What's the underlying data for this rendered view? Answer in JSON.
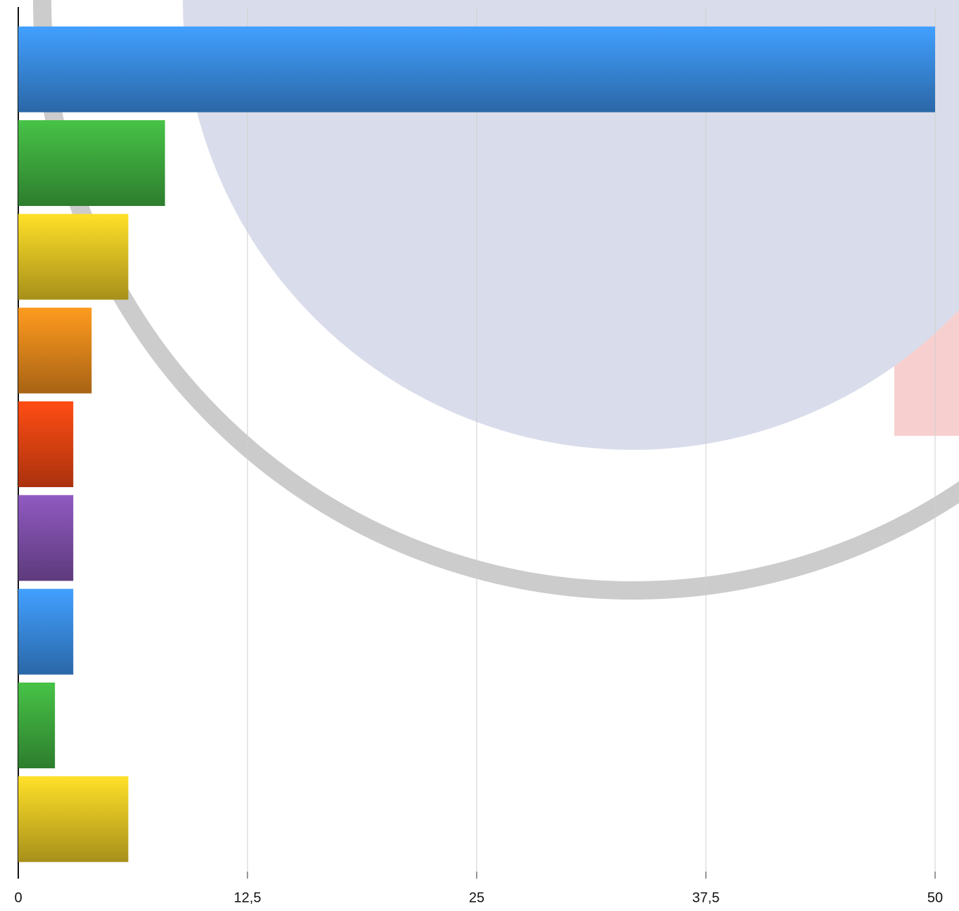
{
  "chart_data": {
    "type": "bar",
    "orientation": "horizontal",
    "categories": [
      null,
      null,
      null,
      null,
      null,
      null,
      null,
      null,
      null
    ],
    "values": [
      50,
      8,
      6,
      4,
      3,
      3,
      3,
      2,
      6
    ],
    "colors": [
      "#3b8fe8",
      "#3fae3f",
      "#e8c824",
      "#ea8a1c",
      "#ec4512",
      "#8150ac",
      "#3b8fe8",
      "#3fae3f",
      "#e8c824"
    ],
    "xlim": [
      0,
      50
    ],
    "xticks": [
      0,
      {
        "value": 12.5,
        "label": "12,5"
      },
      25,
      {
        "value": 37.5,
        "label": "37,5"
      },
      50
    ],
    "grid": true
  }
}
